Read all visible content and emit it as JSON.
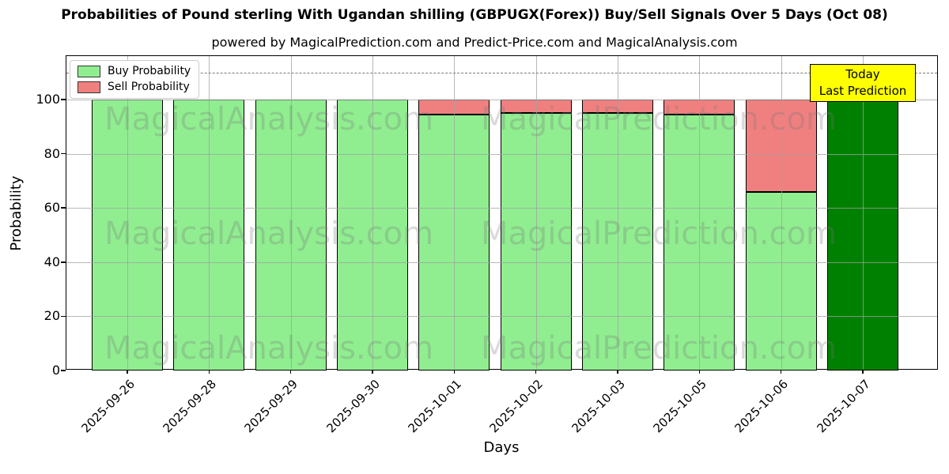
{
  "title": "Probabilities of Pound sterling With Ugandan shilling (GBPUGX(Forex)) Buy/Sell Signals Over 5 Days (Oct 08)",
  "subtitle": "powered by MagicalPrediction.com and Predict-Price.com and MagicalAnalysis.com",
  "axes": {
    "x_label": "Days",
    "y_label": "Probability"
  },
  "legend": {
    "items": [
      {
        "label": "Buy Probability",
        "color": "#90EE90"
      },
      {
        "label": "Sell Probability",
        "color": "#F08080"
      }
    ]
  },
  "annotation": {
    "line1": "Today",
    "line2": "Last Prediction",
    "bg_color": "#FFFF00"
  },
  "watermarks": {
    "left": "MagicalAnalysis.com",
    "right": "MagicalPrediction.com"
  },
  "chart_data": {
    "type": "bar",
    "stacked": true,
    "title": "Probabilities of Pound sterling With Ugandan shilling (GBPUGX(Forex)) Buy/Sell Signals Over 5 Days (Oct 08)",
    "xlabel": "Days",
    "ylabel": "Probability",
    "categories": [
      "2025-09-26",
      "2025-09-28",
      "2025-09-29",
      "2025-09-30",
      "2025-10-01",
      "2025-10-02",
      "2025-10-03",
      "2025-10-05",
      "2025-10-06",
      "2025-10-07"
    ],
    "series": [
      {
        "name": "Buy Probability",
        "color": "#90EE90",
        "values": [
          100,
          100,
          100,
          100,
          94.5,
          95.0,
          94.9,
          94.4,
          65.9,
          100
        ]
      },
      {
        "name": "Sell Probability",
        "color": "#F08080",
        "values": [
          0,
          0,
          0,
          0,
          5.5,
          5.0,
          5.1,
          5.6,
          34.1,
          0
        ]
      }
    ],
    "today_index": 9,
    "today_color": "#008000",
    "bar_edge_color": "#000000",
    "yticks": [
      0,
      20,
      40,
      60,
      80,
      100
    ],
    "ylim": [
      0,
      116
    ],
    "dashed_line_y": 110,
    "grid": true,
    "legend_position": "upper left"
  }
}
